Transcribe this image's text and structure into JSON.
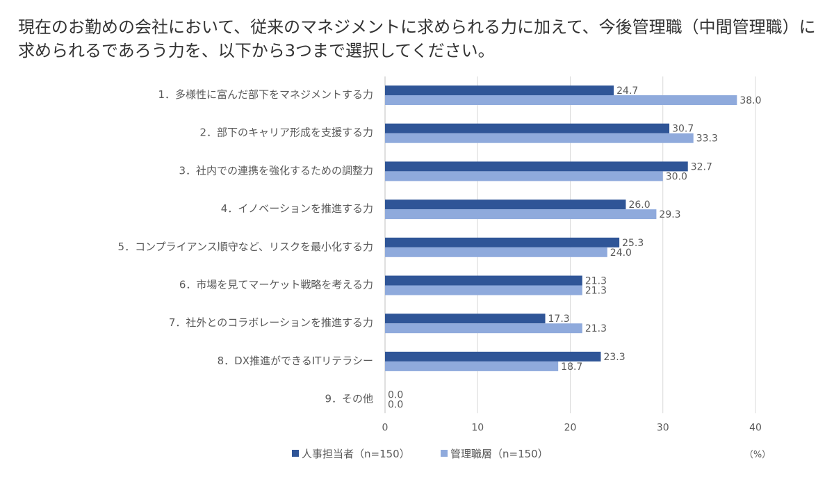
{
  "title": "現在のお勤めの会社において、従来のマネジメントに求められる力に加えて、今後管理職（中間管理職）に求められるであろう力を、以下から3つまで選択してください。",
  "unit": "（%）",
  "colors": {
    "series1": "#2F5597",
    "series2": "#8FAADC",
    "grid": "#D9D9D9",
    "axis": "#BFBFBF"
  },
  "chart_data": {
    "type": "bar",
    "orientation": "horizontal",
    "categories": [
      "1．多様性に富んだ部下をマネジメントする力",
      "2．部下のキャリア形成を支援する力",
      "3．社内での連携を強化するための調整力",
      "4．イノベーションを推進する力",
      "5．コンプライアンス順守など、リスクを最小化する力",
      "6．市場を見てマーケット戦略を考える力",
      "7．社外とのコラボレーションを推進する力",
      "8．DX推進ができるITリテラシー",
      "9．その他"
    ],
    "series": [
      {
        "name": "人事担当者（n=150）",
        "values": [
          24.7,
          30.7,
          32.7,
          26.0,
          25.3,
          21.3,
          17.3,
          23.3,
          0.0
        ]
      },
      {
        "name": "管理職層（n=150）",
        "values": [
          38.0,
          33.3,
          30.0,
          29.3,
          24.0,
          21.3,
          21.3,
          18.7,
          0.0
        ]
      }
    ],
    "xlim": [
      0,
      40
    ],
    "ticks": [
      0,
      10,
      20,
      30,
      40
    ],
    "grid": true,
    "legend_position": "bottom"
  }
}
